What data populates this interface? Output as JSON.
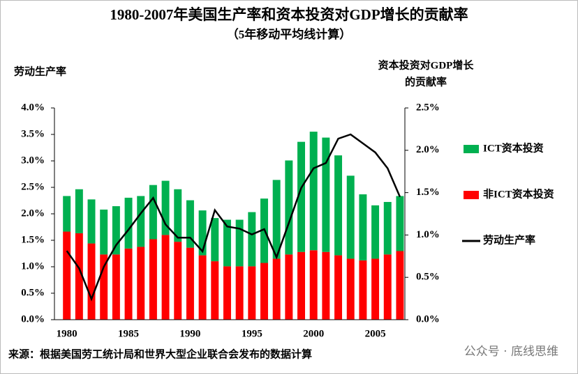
{
  "chart_data": {
    "type": "bar",
    "title": "1980-2007年美国生产率和资本投资对GDP增长的贡献率",
    "subtitle": "（5年移动平均线计算）",
    "y_label": "劳动生产率",
    "y2_label": [
      "资本投资对GDP增长",
      "的贡献率"
    ],
    "x": [
      1980,
      1981,
      1982,
      1983,
      1984,
      1985,
      1986,
      1987,
      1988,
      1989,
      1990,
      1991,
      1992,
      1993,
      1994,
      1995,
      1996,
      1997,
      1998,
      1999,
      2000,
      2001,
      2002,
      2003,
      2004,
      2005,
      2006,
      2007
    ],
    "xlim": [
      1979,
      2007.4
    ],
    "xticks": [
      1980,
      1985,
      1990,
      1995,
      2000,
      2005
    ],
    "ylim": [
      0,
      4
    ],
    "yticks": [
      {
        "value": 0,
        "label": "0.0%"
      },
      {
        "value": 0.5,
        "label": "0.5%"
      },
      {
        "value": 1,
        "label": "1.0%"
      },
      {
        "value": 1.5,
        "label": "1.5%"
      },
      {
        "value": 2,
        "label": "2.0%"
      },
      {
        "value": 2.5,
        "label": "2.5%"
      },
      {
        "value": 3,
        "label": "3.0%"
      },
      {
        "value": 3.5,
        "label": "3.5%"
      },
      {
        "value": 4,
        "label": "4.0%"
      }
    ],
    "y2lim": [
      0,
      2.5
    ],
    "y2ticks": [
      {
        "value": 0,
        "label": "0.0%"
      },
      {
        "value": 0.5,
        "label": "0.5%"
      },
      {
        "value": 1,
        "label": "1.0%"
      },
      {
        "value": 1.5,
        "label": "1.5%"
      },
      {
        "value": 2,
        "label": "2.0%"
      },
      {
        "value": 2.5,
        "label": "2.5%"
      }
    ],
    "stacked": true,
    "legend": "right",
    "series": [
      {
        "name": "ICT资本投资",
        "color": "#00b050",
        "type": "bar",
        "axis": "y2",
        "values": [
          0.42,
          0.52,
          0.52,
          0.53,
          0.57,
          0.6,
          0.6,
          0.64,
          0.64,
          0.62,
          0.56,
          0.53,
          0.51,
          0.55,
          0.55,
          0.64,
          0.76,
          0.93,
          1.11,
          1.3,
          1.4,
          1.35,
          1.18,
          0.98,
          0.78,
          0.63,
          0.62,
          0.65
        ]
      },
      {
        "name": "非ICT资本投资",
        "color": "#ff0000",
        "type": "bar",
        "axis": "y2",
        "values": [
          1.04,
          1.02,
          0.9,
          0.77,
          0.77,
          0.84,
          0.86,
          0.95,
          1.0,
          0.92,
          0.85,
          0.76,
          0.69,
          0.63,
          0.63,
          0.63,
          0.67,
          0.72,
          0.77,
          0.8,
          0.82,
          0.8,
          0.76,
          0.72,
          0.7,
          0.72,
          0.77,
          0.81
        ]
      },
      {
        "name": "劳动生产率",
        "color": "#000000",
        "type": "line",
        "values": [
          1.3,
          0.97,
          0.39,
          1.0,
          1.41,
          1.7,
          2.01,
          2.3,
          1.8,
          1.55,
          1.55,
          1.29,
          2.07,
          1.76,
          1.72,
          1.61,
          1.71,
          1.18,
          1.83,
          2.49,
          2.86,
          2.96,
          3.42,
          3.5,
          3.33,
          3.16,
          2.86,
          2.32
        ]
      }
    ]
  },
  "source": "来源：根据美国劳工统计局和世界大型企业联合会发布的数据计算",
  "watermark": "公众号 · 底线思维"
}
